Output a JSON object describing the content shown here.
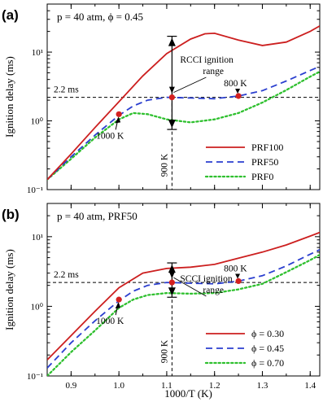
{
  "figure": {
    "x_axis_label": "1000/T (K)",
    "y_axis_label": "Ignition delay (ms)",
    "panels": [
      {
        "letter": "(a)",
        "condition": "p = 40 atm, ϕ = 0.45",
        "range_label_line1": "RCCI ignition",
        "range_label_line2": "range",
        "label_22": "2.2 ms",
        "label_800": "800 K",
        "label_1000": "1000 K",
        "label_900": "900 K"
      },
      {
        "letter": "(b)",
        "condition": "p = 40 atm, PRF50",
        "range_label_line1": "SCCI ignition",
        "range_label_line2": "range",
        "label_22": "2.2 ms",
        "label_800": "800 K",
        "label_1000": "1000 K",
        "label_900": "900 K"
      }
    ]
  },
  "colors": {
    "red": "#cc1f1f",
    "blue": "#2b3fcf",
    "green": "#2fc02f"
  },
  "chart_data": [
    {
      "type": "line",
      "title": "p = 40 atm, ϕ = 0.45",
      "xlabel": "",
      "ylabel": "Ignition delay (ms)",
      "xlim": [
        0.85,
        1.42
      ],
      "ylim": [
        0.1,
        50
      ],
      "y_scale": "log",
      "x_ticks": [],
      "y_ticks": [
        {
          "value": 0.1,
          "label": "10⁻¹"
        },
        {
          "value": 1,
          "label": "10⁰"
        },
        {
          "value": 10,
          "label": "10¹"
        }
      ],
      "legend_position": "bottom-right",
      "reference_line": {
        "y": 2.2,
        "label": "2.2 ms"
      },
      "vertical_line": {
        "x": 1.111,
        "label": "900 K"
      },
      "range_arrow": {
        "x": 1.111,
        "y_low": 0.75,
        "y_high": 17.0,
        "y_mid": 2.2
      },
      "markers": [
        {
          "x": 1.0,
          "y": 1.25,
          "label": "1000 K"
        },
        {
          "x": 1.111,
          "y": 2.2
        },
        {
          "x": 1.25,
          "y": 2.3,
          "label": "800 K"
        }
      ],
      "series": [
        {
          "name": "PRF0",
          "style": "dotted",
          "color": "green",
          "x": [
            0.85,
            0.9,
            0.95,
            1.0,
            1.03,
            1.06,
            1.1,
            1.15,
            1.2,
            1.25,
            1.3,
            1.35,
            1.4,
            1.42
          ],
          "y": [
            0.14,
            0.28,
            0.57,
            1.05,
            1.3,
            1.25,
            1.05,
            0.95,
            1.05,
            1.3,
            1.85,
            2.8,
            4.4,
            5.2
          ]
        },
        {
          "name": "PRF50",
          "style": "dashed",
          "color": "blue",
          "x": [
            0.85,
            0.9,
            0.95,
            1.0,
            1.03,
            1.06,
            1.1,
            1.15,
            1.2,
            1.25,
            1.3,
            1.35,
            1.4,
            1.42
          ],
          "y": [
            0.14,
            0.3,
            0.62,
            1.2,
            1.65,
            2.0,
            2.2,
            2.15,
            2.1,
            2.3,
            2.75,
            3.8,
            5.4,
            6.2
          ]
        },
        {
          "name": "PRF100",
          "style": "solid",
          "color": "red",
          "x": [
            0.85,
            0.9,
            0.95,
            1.0,
            1.05,
            1.1,
            1.15,
            1.18,
            1.2,
            1.25,
            1.3,
            1.35,
            1.4,
            1.42
          ],
          "y": [
            0.14,
            0.33,
            0.8,
            1.9,
            4.5,
            9.5,
            15.5,
            18.5,
            18.8,
            15.0,
            12.5,
            14.0,
            20.0,
            24.0
          ]
        }
      ]
    },
    {
      "type": "line",
      "title": "p = 40 atm, PRF50",
      "xlabel": "1000/T (K)",
      "ylabel": "Ignition delay (ms)",
      "xlim": [
        0.85,
        1.42
      ],
      "ylim": [
        0.1,
        30
      ],
      "y_scale": "log",
      "x_ticks": [
        {
          "value": 0.9,
          "label": "0.9"
        },
        {
          "value": 1.0,
          "label": "1.0"
        },
        {
          "value": 1.1,
          "label": "1.1"
        },
        {
          "value": 1.2,
          "label": "1.2"
        },
        {
          "value": 1.3,
          "label": "1.3"
        },
        {
          "value": 1.4,
          "label": "1.4"
        }
      ],
      "y_ticks": [
        {
          "value": 0.1,
          "label": "10⁻¹"
        },
        {
          "value": 1,
          "label": "10⁰"
        },
        {
          "value": 10,
          "label": "10¹"
        }
      ],
      "legend_position": "bottom-right",
      "reference_line": {
        "y": 2.2,
        "label": "2.2 ms"
      },
      "vertical_line": {
        "x": 1.111,
        "label": "900 K"
      },
      "range_arrow": {
        "x": 1.111,
        "y_low": 1.35,
        "y_high": 4.2,
        "y_mid": 2.2
      },
      "markers": [
        {
          "x": 1.0,
          "y": 1.25,
          "label": "1000 K"
        },
        {
          "x": 1.111,
          "y": 2.2
        },
        {
          "x": 1.25,
          "y": 2.3,
          "label": "800 K"
        }
      ],
      "series": [
        {
          "name": "ϕ = 0.30",
          "style": "solid",
          "color": "red",
          "x": [
            0.85,
            0.9,
            0.95,
            1.0,
            1.05,
            1.1,
            1.15,
            1.2,
            1.25,
            1.3,
            1.35,
            1.4,
            1.42
          ],
          "y": [
            0.17,
            0.38,
            0.85,
            1.85,
            3.0,
            3.5,
            3.65,
            4.0,
            4.9,
            6.0,
            7.6,
            10.2,
            11.5
          ]
        },
        {
          "name": "ϕ = 0.45",
          "style": "dashed",
          "color": "blue",
          "x": [
            0.85,
            0.9,
            0.95,
            1.0,
            1.03,
            1.06,
            1.1,
            1.15,
            1.2,
            1.25,
            1.3,
            1.35,
            1.4,
            1.42
          ],
          "y": [
            0.13,
            0.3,
            0.62,
            1.2,
            1.65,
            2.0,
            2.2,
            2.15,
            2.1,
            2.3,
            2.75,
            3.8,
            5.6,
            6.5
          ]
        },
        {
          "name": "ϕ = 0.70",
          "style": "dotted",
          "color": "green",
          "x": [
            0.85,
            0.9,
            0.95,
            1.0,
            1.03,
            1.06,
            1.1,
            1.15,
            1.2,
            1.25,
            1.3,
            1.35,
            1.4,
            1.42
          ],
          "y": [
            0.1,
            0.22,
            0.45,
            0.95,
            1.25,
            1.45,
            1.55,
            1.52,
            1.55,
            1.75,
            2.1,
            3.1,
            4.6,
            5.5
          ]
        }
      ]
    }
  ]
}
